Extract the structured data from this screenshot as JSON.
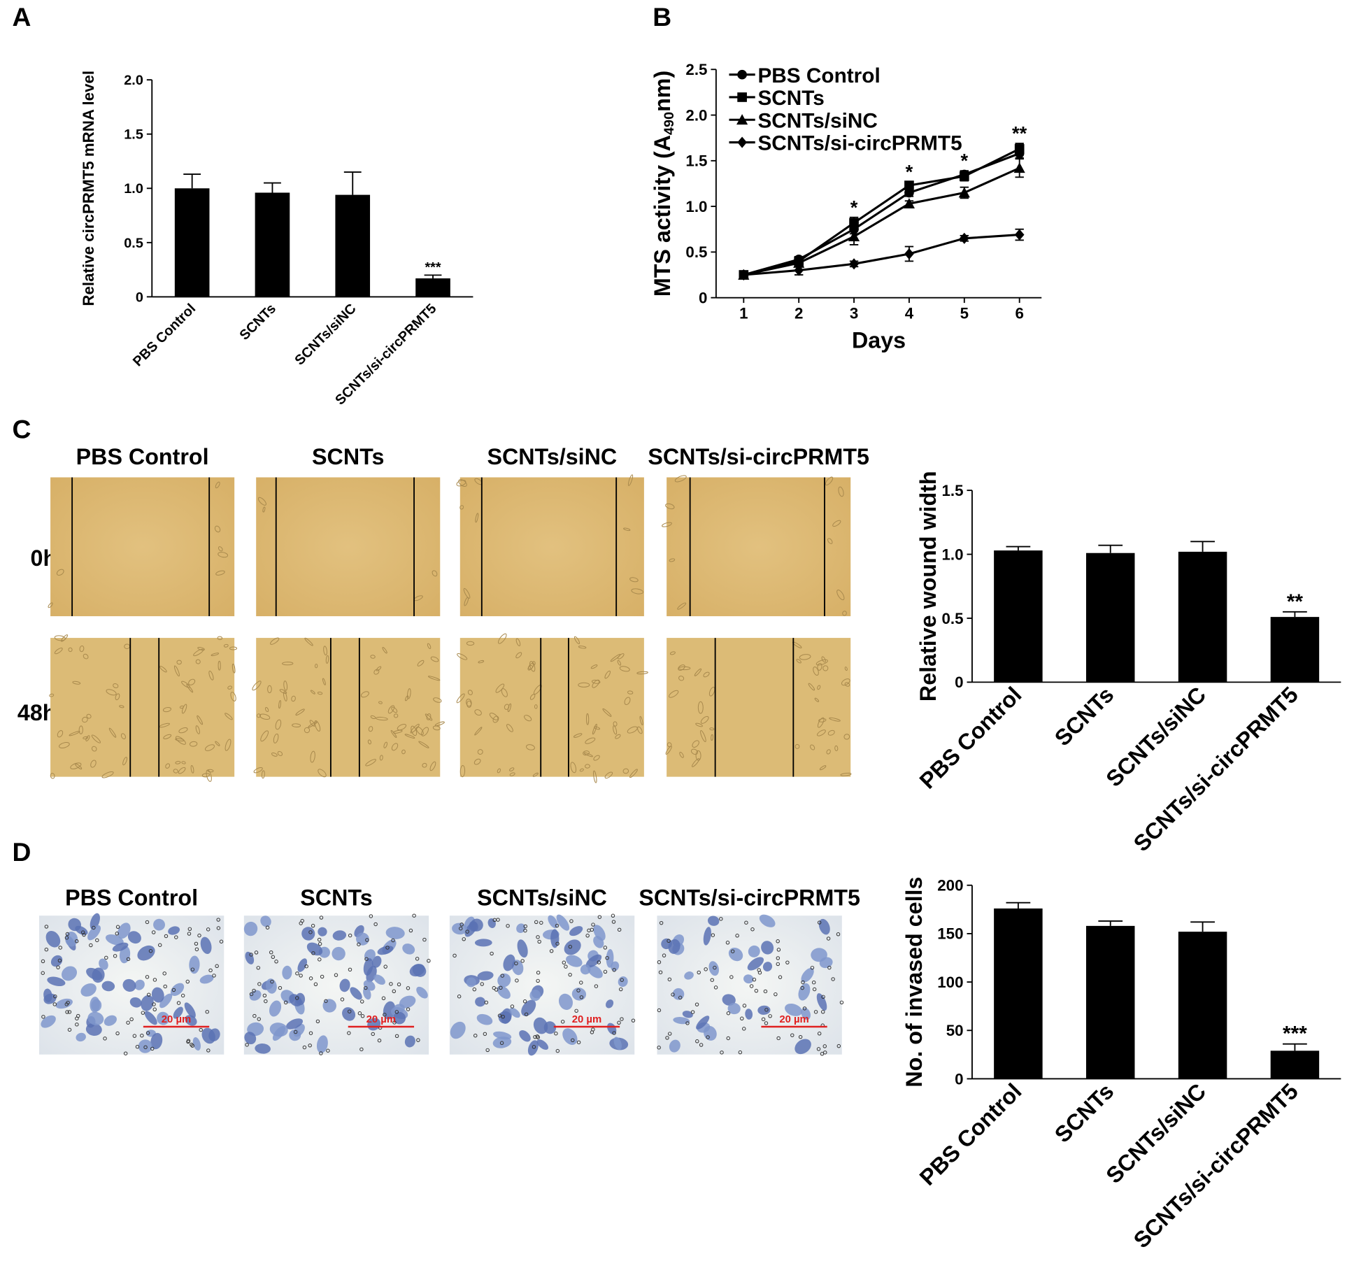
{
  "panel_labels": [
    "A",
    "B",
    "C",
    "D"
  ],
  "wound_assay": {
    "columns": [
      "PBS Control",
      "SCNTs",
      "SCNTs/siNC",
      "SCNTs/si-circPRMT5"
    ],
    "rows": [
      "0h",
      "48h"
    ]
  },
  "invasion_assay": {
    "columns": [
      "PBS Control",
      "SCNTs",
      "SCNTs/siNC",
      "SCNTs/si-circPRMT5"
    ],
    "scale_bar": "20 µm"
  },
  "chart_data": [
    {
      "type": "bar",
      "categories": [
        "PBS Control",
        "SCNTs",
        "SCNTs/siNC",
        "SCNTs/si-circPRMT5"
      ],
      "values": [
        1.0,
        0.96,
        0.94,
        0.17
      ],
      "errors": [
        0.13,
        0.09,
        0.21,
        0.03
      ],
      "color": "#000000",
      "y_label": "Relative circPRMT5 mRNA level",
      "ylim": [
        0,
        2
      ],
      "yticks": [
        0,
        0.5,
        {
          "value": 1,
          "label": "1.0"
        },
        1.5,
        {
          "value": 2,
          "label": "2.0"
        }
      ],
      "annotations": [
        {
          "x": "SCNTs/si-circPRMT5",
          "text": "***"
        }
      ]
    },
    {
      "type": "line",
      "x": [
        1,
        2,
        3,
        4,
        5,
        6
      ],
      "xlim": [
        0.5,
        6.4
      ],
      "xticks": [
        1,
        2,
        3,
        4,
        5,
        6
      ],
      "x_label": "Days",
      "y_label": [
        "MTS activity (A",
        "490",
        "nm)"
      ],
      "ylim": [
        0,
        2.5
      ],
      "yticks": [
        0,
        0.5,
        {
          "value": 1,
          "label": "1.0"
        },
        1.5,
        {
          "value": 2,
          "label": "2.0"
        },
        2.5
      ],
      "legend": "upper left",
      "series": [
        {
          "name": "PBS Control",
          "color": "#000000",
          "marker": "circle",
          "values": [
            0.25,
            0.42,
            0.75,
            1.15,
            1.35,
            1.58
          ],
          "errors": [
            0.02,
            0.03,
            0.05,
            0.04,
            0.04,
            0.05
          ]
        },
        {
          "name": "SCNTs",
          "color": "#000000",
          "marker": "square",
          "values": [
            0.25,
            0.4,
            0.82,
            1.23,
            1.33,
            1.63
          ],
          "errors": [
            0.02,
            0.03,
            0.06,
            0.04,
            0.05,
            0.06
          ]
        },
        {
          "name": "SCNTs/siNC",
          "color": "#000000",
          "marker": "triangle",
          "values": [
            0.25,
            0.38,
            0.67,
            1.03,
            1.15,
            1.42
          ],
          "errors": [
            0.02,
            0.03,
            0.09,
            0.03,
            0.06,
            0.1
          ]
        },
        {
          "name": "SCNTs/si-circPRMT5",
          "color": "#000000",
          "marker": "diamond",
          "values": [
            0.25,
            0.3,
            0.37,
            0.48,
            0.65,
            0.69
          ],
          "errors": [
            0.02,
            0.05,
            0.03,
            0.08,
            0.03,
            0.06
          ]
        }
      ],
      "annotations": [
        {
          "x": 3,
          "text": "*"
        },
        {
          "x": 4,
          "text": "*"
        },
        {
          "x": 5,
          "text": "*"
        },
        {
          "x": 6,
          "text": "**"
        }
      ]
    },
    {
      "type": "bar",
      "categories": [
        "PBS Control",
        "SCNTs",
        "SCNTs/siNC",
        "SCNTs/si-circPRMT5"
      ],
      "values": [
        1.03,
        1.01,
        1.02,
        0.51
      ],
      "errors": [
        0.03,
        0.06,
        0.08,
        0.04
      ],
      "color": "#000000",
      "y_label": "Relative wound width",
      "ylim": [
        0,
        1.5
      ],
      "yticks": [
        0,
        0.5,
        {
          "value": 1,
          "label": "1.0"
        },
        1.5
      ],
      "annotations": [
        {
          "x": "SCNTs/si-circPRMT5",
          "text": "**"
        }
      ]
    },
    {
      "type": "bar",
      "categories": [
        "PBS Control",
        "SCNTs",
        "SCNTs/siNC",
        "SCNTs/si-circPRMT5"
      ],
      "values": [
        176,
        158,
        152,
        29
      ],
      "errors": [
        6,
        5,
        10,
        7
      ],
      "color": "#000000",
      "y_label": "No. of invased cells",
      "ylim": [
        0,
        200
      ],
      "yticks": [
        0,
        50,
        100,
        150,
        200
      ],
      "annotations": [
        {
          "x": "SCNTs/si-circPRMT5",
          "text": "***"
        }
      ]
    }
  ]
}
